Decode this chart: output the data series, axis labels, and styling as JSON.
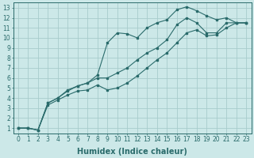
{
  "bg_color": "#cce8e8",
  "grid_color": "#a8cccc",
  "line_color": "#2a6b6b",
  "xlabel": "Humidex (Indice chaleur)",
  "xlabel_fontsize": 7,
  "tick_fontsize": 5.5,
  "xlim": [
    -0.5,
    23.5
  ],
  "ylim": [
    0.5,
    13.5
  ],
  "xticks": [
    0,
    1,
    2,
    3,
    4,
    5,
    6,
    7,
    8,
    9,
    10,
    11,
    12,
    13,
    14,
    15,
    16,
    17,
    18,
    19,
    20,
    21,
    22,
    23
  ],
  "yticks": [
    1,
    2,
    3,
    4,
    5,
    6,
    7,
    8,
    9,
    10,
    11,
    12,
    13
  ],
  "line1_x": [
    0,
    1,
    2,
    3,
    4,
    5,
    6,
    7,
    8,
    9,
    10,
    11,
    12,
    13,
    14,
    15,
    16,
    17,
    18,
    19,
    20,
    21,
    22,
    23
  ],
  "line1_y": [
    1.0,
    1.0,
    0.8,
    3.5,
    4.0,
    4.8,
    5.2,
    5.5,
    6.3,
    9.5,
    10.5,
    10.4,
    10.0,
    11.0,
    11.5,
    11.8,
    12.8,
    13.1,
    12.7,
    12.2,
    11.8,
    12.0,
    11.5,
    11.5
  ],
  "line2_x": [
    0,
    1,
    2,
    3,
    4,
    5,
    6,
    7,
    8,
    9,
    10,
    11,
    12,
    13,
    14,
    15,
    16,
    17,
    18,
    19,
    20,
    21,
    22,
    23
  ],
  "line2_y": [
    1.0,
    1.0,
    0.8,
    3.5,
    4.0,
    4.7,
    5.2,
    5.5,
    6.0,
    6.0,
    6.5,
    7.0,
    7.8,
    8.5,
    9.0,
    9.8,
    11.3,
    12.0,
    11.5,
    10.5,
    10.5,
    11.5,
    11.5,
    11.5
  ],
  "line3_x": [
    0,
    1,
    2,
    3,
    4,
    5,
    6,
    7,
    8,
    9,
    10,
    11,
    12,
    13,
    14,
    15,
    16,
    17,
    18,
    19,
    20,
    21,
    22,
    23
  ],
  "line3_y": [
    1.0,
    1.0,
    0.8,
    3.3,
    3.8,
    4.3,
    4.7,
    4.8,
    5.3,
    4.8,
    5.0,
    5.5,
    6.2,
    7.0,
    7.8,
    8.5,
    9.5,
    10.5,
    10.8,
    10.2,
    10.3,
    11.0,
    11.5,
    11.5
  ]
}
